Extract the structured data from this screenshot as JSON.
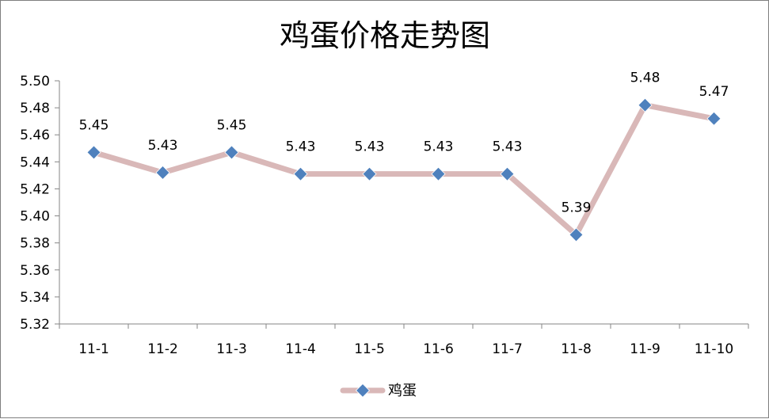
{
  "chart_data": {
    "type": "line",
    "title": "鸡蛋价格走势图",
    "xlabel": "",
    "ylabel": "",
    "categories": [
      "11-1",
      "11-2",
      "11-3",
      "11-4",
      "11-5",
      "11-6",
      "11-7",
      "11-8",
      "11-9",
      "11-10"
    ],
    "series": [
      {
        "name": "鸡蛋",
        "values": [
          5.447,
          5.432,
          5.447,
          5.431,
          5.431,
          5.431,
          5.431,
          5.386,
          5.482,
          5.472
        ],
        "labels": [
          "5.45",
          "5.43",
          "5.45",
          "5.43",
          "5.43",
          "5.43",
          "5.43",
          "5.39",
          "5.48",
          "5.47"
        ],
        "line_color": "#d9b8b8",
        "marker_color": "#4f81bd",
        "marker": "diamond"
      }
    ],
    "ylim": [
      5.32,
      5.5
    ],
    "yticks": [
      "5.32",
      "5.34",
      "5.36",
      "5.38",
      "5.40",
      "5.42",
      "5.44",
      "5.46",
      "5.48",
      "5.50"
    ],
    "grid": false,
    "legend_position": "bottom"
  }
}
